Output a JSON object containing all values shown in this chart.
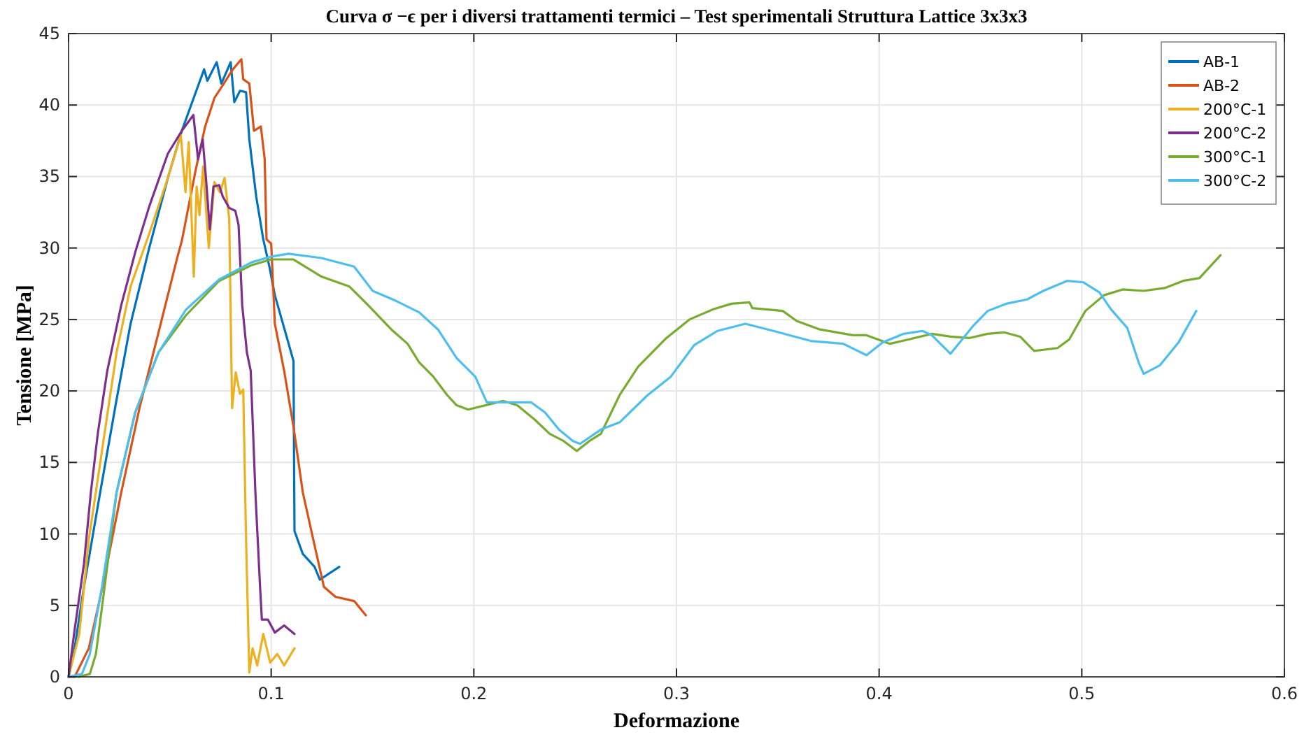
{
  "chart_data": {
    "type": "line",
    "title": "Curva σ −ϵ per i diversi trattamenti termici – Test sperimentali Struttura Lattice 3x3x3",
    "xlabel": "Deformazione",
    "ylabel": "Tensione  [MPa]",
    "xlim": [
      0,
      0.6
    ],
    "xticks": [
      0,
      0.1,
      0.2,
      0.3,
      0.4,
      0.5,
      0.6
    ],
    "ylim": [
      0,
      45
    ],
    "yticks": [
      0,
      5,
      10,
      15,
      20,
      25,
      30,
      35,
      40,
      45
    ],
    "grid": true,
    "legend": "top right",
    "marker": "none",
    "line_style": "solid",
    "series": [
      {
        "name": "AB-1",
        "color": "#0072bd",
        "x": [
          0,
          0.003,
          0.0076,
          0.0156,
          0.0237,
          0.0306,
          0.0398,
          0.049,
          0.0559,
          0.0628,
          0.0669,
          0.0685,
          0.0731,
          0.0754,
          0.08,
          0.0818,
          0.0846,
          0.0876,
          0.0892,
          0.0926,
          0.0961,
          0.0991,
          0.1018,
          0.1064,
          0.111,
          0.1115,
          0.1156,
          0.1214,
          0.124,
          0.1336
        ],
        "values": [
          0,
          2.0,
          6.3,
          12.9,
          19.4,
          24.7,
          30.0,
          34.9,
          38.2,
          40.9,
          42.5,
          41.7,
          43.0,
          41.5,
          43.0,
          40.2,
          41.0,
          40.9,
          37.6,
          33.6,
          30.6,
          28.7,
          26.7,
          24.4,
          22.1,
          10.2,
          8.6,
          7.7,
          6.8,
          7.7
        ]
      },
      {
        "name": "AB-2",
        "color": "#d95319",
        "x": [
          0,
          0.003,
          0.01,
          0.0168,
          0.026,
          0.035,
          0.0444,
          0.0536,
          0.0559,
          0.0628,
          0.0674,
          0.072,
          0.0766,
          0.0811,
          0.0853,
          0.0862,
          0.0892,
          0.0915,
          0.0949,
          0.0968,
          0.0977,
          0.1,
          0.1018,
          0.1064,
          0.111,
          0.1156,
          0.1214,
          0.126,
          0.1317,
          0.141,
          0.1467
        ],
        "values": [
          0,
          0,
          2.0,
          6.3,
          12.9,
          18.8,
          24.1,
          29.3,
          30.5,
          35.5,
          38.5,
          40.5,
          41.5,
          42.5,
          43.2,
          41.8,
          41.5,
          38.2,
          38.5,
          36.2,
          30.6,
          30.3,
          24.7,
          21.4,
          17.5,
          12.9,
          9.2,
          6.3,
          5.6,
          5.3,
          4.3
        ]
      },
      {
        "name": "200°C-1",
        "color": "#edb120",
        "x": [
          0,
          0.0053,
          0.01,
          0.0168,
          0.0237,
          0.0306,
          0.0398,
          0.049,
          0.0554,
          0.0577,
          0.0593,
          0.0618,
          0.0632,
          0.0646,
          0.0664,
          0.0692,
          0.072,
          0.0747,
          0.077,
          0.0793,
          0.0807,
          0.0825,
          0.0846,
          0.0862,
          0.0876,
          0.0892,
          0.0908,
          0.0931,
          0.0961,
          0.0995,
          0.103,
          0.1064,
          0.1115
        ],
        "values": [
          0,
          3.0,
          9.6,
          16.1,
          22.7,
          27.3,
          31.0,
          34.9,
          37.9,
          33.9,
          37.4,
          28.0,
          34.3,
          32.3,
          35.7,
          30.0,
          34.6,
          33.9,
          34.9,
          32.0,
          18.8,
          21.3,
          19.8,
          20.1,
          9.6,
          0.3,
          2.0,
          0.8,
          3.0,
          1.0,
          1.6,
          0.8,
          2.0
        ]
      },
      {
        "name": "200°C-2",
        "color": "#7e2f8e",
        "x": [
          0,
          0.003,
          0.0076,
          0.011,
          0.0145,
          0.0191,
          0.026,
          0.0329,
          0.0398,
          0.049,
          0.0559,
          0.0616,
          0.0639,
          0.0662,
          0.0678,
          0.0697,
          0.0715,
          0.0743,
          0.0761,
          0.0793,
          0.0823,
          0.0839,
          0.0857,
          0.088,
          0.0899,
          0.0922,
          0.0945,
          0.0954,
          0.0984,
          0.1018,
          0.1064,
          0.1115
        ],
        "values": [
          0,
          3.3,
          7.9,
          12.9,
          17.1,
          21.4,
          26.0,
          29.7,
          32.9,
          36.6,
          38.2,
          39.3,
          36.2,
          37.6,
          34.9,
          31.3,
          34.3,
          34.4,
          33.6,
          32.8,
          32.6,
          31.6,
          26.0,
          22.7,
          21.4,
          12.9,
          6.3,
          4.0,
          4.0,
          3.1,
          3.6,
          3.0
        ]
      },
      {
        "name": "300°C-1",
        "color": "#77ac30",
        "x": [
          0.005,
          0.0105,
          0.0135,
          0.0178,
          0.0237,
          0.0329,
          0.0444,
          0.058,
          0.0743,
          0.0903,
          0.1,
          0.111,
          0.1248,
          0.1386,
          0.1478,
          0.1593,
          0.1673,
          0.173,
          0.18,
          0.1869,
          0.1915,
          0.1972,
          0.2145,
          0.2214,
          0.23,
          0.2374,
          0.2443,
          0.2508,
          0.257,
          0.2627,
          0.2719,
          0.2811,
          0.295,
          0.3064,
          0.3179,
          0.3271,
          0.336,
          0.3374,
          0.3524,
          0.3593,
          0.3708,
          0.387,
          0.3938,
          0.4053,
          0.4145,
          0.426,
          0.4352,
          0.4444,
          0.4536,
          0.4616,
          0.4696,
          0.4765,
          0.488,
          0.4938,
          0.5018,
          0.511,
          0.5202,
          0.5305,
          0.5409,
          0.55,
          0.5581,
          0.5685
        ],
        "values": [
          0,
          0.2,
          1.6,
          6.3,
          12.9,
          18.5,
          22.7,
          25.3,
          27.7,
          28.8,
          29.2,
          29.2,
          28.0,
          27.3,
          26.0,
          24.3,
          23.3,
          22.0,
          21.0,
          19.7,
          19.0,
          18.7,
          19.3,
          19.0,
          18.0,
          17.0,
          16.5,
          15.8,
          16.5,
          17.0,
          19.7,
          21.7,
          23.7,
          25.0,
          25.7,
          26.1,
          26.2,
          25.8,
          25.6,
          24.9,
          24.3,
          23.9,
          23.9,
          23.3,
          23.6,
          24.0,
          23.8,
          23.7,
          24.0,
          24.1,
          23.8,
          22.8,
          23.0,
          23.6,
          25.6,
          26.7,
          27.1,
          27.0,
          27.2,
          27.7,
          27.9,
          29.5
        ]
      },
      {
        "name": "300°C-2",
        "color": "#4dbeee",
        "x": [
          0,
          0.0066,
          0.0105,
          0.0165,
          0.0237,
          0.0329,
          0.0444,
          0.058,
          0.0743,
          0.0903,
          0.1,
          0.1087,
          0.1248,
          0.1409,
          0.1501,
          0.1616,
          0.173,
          0.1823,
          0.1915,
          0.2007,
          0.2064,
          0.2168,
          0.2283,
          0.2351,
          0.242,
          0.2489,
          0.2524,
          0.2627,
          0.2719,
          0.2857,
          0.2972,
          0.3087,
          0.3202,
          0.334,
          0.3478,
          0.3662,
          0.3823,
          0.3938,
          0.4018,
          0.4122,
          0.4214,
          0.426,
          0.4352,
          0.4467,
          0.4536,
          0.4627,
          0.473,
          0.481,
          0.4927,
          0.5007,
          0.5087,
          0.5145,
          0.5225,
          0.5283,
          0.5306,
          0.5386,
          0.5478,
          0.5565
        ],
        "values": [
          0,
          0.2,
          1.6,
          6.3,
          12.9,
          18.5,
          22.7,
          25.7,
          27.8,
          29.0,
          29.4,
          29.6,
          29.3,
          28.7,
          27.0,
          26.3,
          25.5,
          24.3,
          22.3,
          21.0,
          19.2,
          19.2,
          19.2,
          18.5,
          17.3,
          16.5,
          16.3,
          17.3,
          17.8,
          19.7,
          21.0,
          23.2,
          24.2,
          24.7,
          24.2,
          23.5,
          23.3,
          22.5,
          23.4,
          24.0,
          24.2,
          23.9,
          22.6,
          24.6,
          25.6,
          26.1,
          26.4,
          27.0,
          27.7,
          27.6,
          26.9,
          25.7,
          24.4,
          21.9,
          21.2,
          21.8,
          23.4,
          25.6
        ]
      }
    ]
  }
}
